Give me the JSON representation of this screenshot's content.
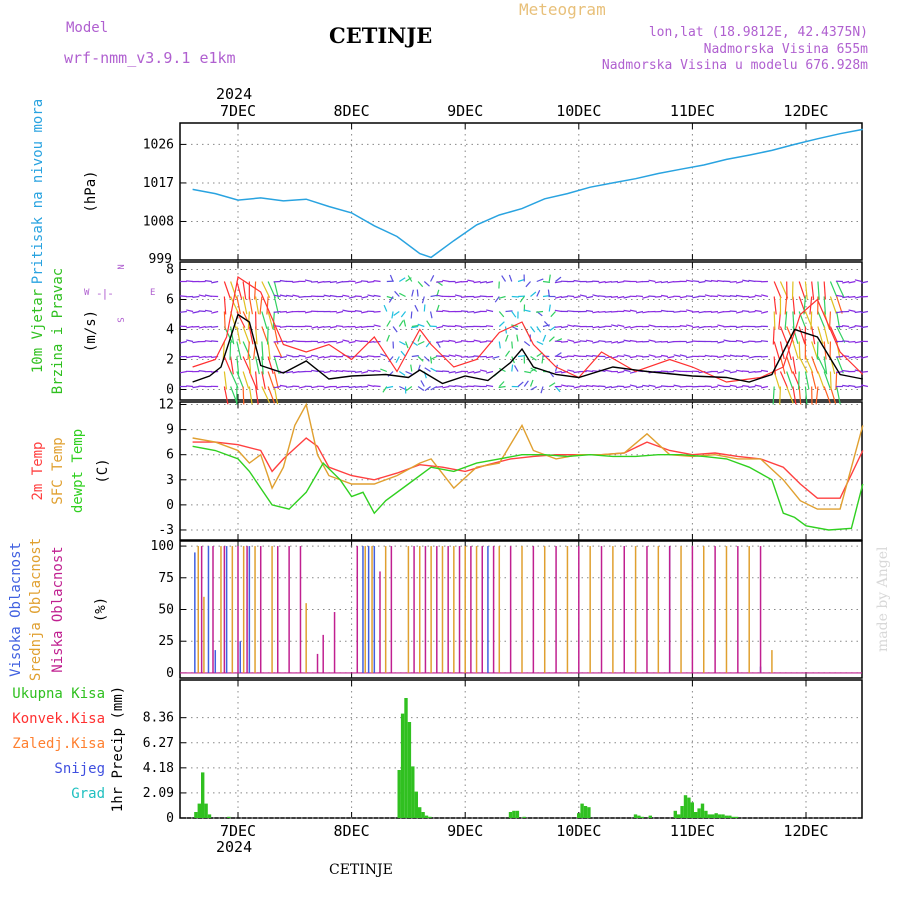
{
  "header": {
    "model_label": "Model",
    "model_name": "wrf-nmm_v3.9.1  e1km",
    "station": "CETINJE",
    "meteogram": "Meteogram",
    "lonlat": "lon,lat (18.9812E, 42.4375N)",
    "elevation": "Nadmorska Visina 655m",
    "model_elevation": "Nadmorska Visina u modelu 676.928m"
  },
  "top_axis": {
    "year": "2024",
    "dates": [
      "7DEC",
      "8DEC",
      "9DEC",
      "10DEC",
      "11DEC",
      "12DEC"
    ]
  },
  "bottom_axis": {
    "year": "2024",
    "dates": [
      "7DEC",
      "8DEC",
      "9DEC",
      "10DEC",
      "11DEC",
      "12DEC"
    ],
    "footer": "CETINJE"
  },
  "watermark": "made by Angel",
  "compass": {
    "n": "N",
    "s": "S",
    "e": "E",
    "w": "W"
  },
  "colors": {
    "pressure": "#29a3e0",
    "wind_speed": "#000000",
    "wind_gust": "#ff3030",
    "t2m": "#ff4040",
    "tsfc": "#e0a030",
    "dewpoint": "#30d020",
    "high_cloud": "#4060e0",
    "mid_cloud": "#e0a030",
    "low_cloud": "#c02090",
    "precip_total": "#30c020"
  },
  "chart_data": [
    {
      "type": "line",
      "panel": "pressure",
      "ylabel_lines": [
        "Pritisak na nivou mora",
        "(hPa)"
      ],
      "yticks": [
        1008,
        1017,
        1026
      ],
      "ylim": [
        999,
        1031
      ],
      "bottom_tick_label": "999",
      "grid": true,
      "x_unit": "days since 2024-12-06 00:00",
      "x": [
        0.6,
        0.8,
        1.0,
        1.2,
        1.4,
        1.6,
        1.8,
        2.0,
        2.2,
        2.4,
        2.6,
        2.7,
        2.9,
        3.1,
        3.3,
        3.5,
        3.7,
        3.9,
        4.1,
        4.3,
        4.5,
        4.7,
        4.9,
        5.1,
        5.3,
        5.5,
        5.7,
        5.9,
        6.1,
        6.3,
        6.5
      ],
      "values": [
        1015.5,
        1014.5,
        1013.0,
        1013.5,
        1012.8,
        1013.2,
        1011.5,
        1010.0,
        1007.0,
        1004.5,
        1000.5,
        999.6,
        1003.5,
        1007.2,
        1009.5,
        1011.0,
        1013.3,
        1014.5,
        1016.0,
        1017.0,
        1018.0,
        1019.2,
        1020.2,
        1021.2,
        1022.5,
        1023.5,
        1024.6,
        1026.0,
        1027.3,
        1028.5,
        1029.5
      ]
    },
    {
      "type": "line",
      "panel": "wind",
      "ylabel_lines": [
        "10m Vjetar",
        "Brzina i Pravac",
        "(m/s)"
      ],
      "yticks": [
        0,
        2,
        4,
        6,
        8
      ],
      "ylim": [
        -0.7,
        8.5
      ],
      "grid": true,
      "x_unit": "days since 2024-12-06 00:00",
      "series": [
        {
          "name": "wind_speed",
          "x": [
            0.6,
            0.75,
            0.85,
            1.0,
            1.1,
            1.2,
            1.4,
            1.6,
            1.8,
            2.0,
            2.3,
            2.5,
            2.6,
            2.8,
            3.0,
            3.2,
            3.4,
            3.5,
            3.6,
            3.8,
            4.0,
            4.3,
            4.6,
            5.0,
            5.3,
            5.5,
            5.7,
            5.9,
            6.1,
            6.3,
            6.5
          ],
          "values": [
            0.5,
            0.9,
            1.5,
            5.0,
            4.5,
            1.6,
            1.1,
            1.9,
            0.7,
            0.9,
            1.0,
            0.8,
            1.3,
            0.4,
            0.9,
            0.6,
            1.8,
            2.7,
            1.5,
            1.0,
            0.8,
            1.5,
            1.2,
            0.9,
            0.8,
            0.5,
            1.0,
            4.0,
            3.5,
            1.0,
            0.7
          ]
        },
        {
          "name": "wind_gust",
          "x": [
            0.6,
            0.8,
            0.9,
            1.0,
            1.2,
            1.4,
            1.6,
            1.8,
            2.0,
            2.2,
            2.4,
            2.6,
            2.7,
            2.9,
            3.1,
            3.3,
            3.5,
            3.6,
            3.8,
            4.0,
            4.2,
            4.5,
            4.8,
            5.0,
            5.3,
            5.6,
            5.8,
            5.95,
            6.1,
            6.3,
            6.5
          ],
          "values": [
            1.5,
            2.0,
            3.5,
            7.5,
            6.5,
            3.0,
            2.5,
            3.0,
            2.0,
            3.5,
            1.2,
            4.0,
            3.0,
            1.5,
            2.0,
            3.8,
            4.5,
            3.0,
            1.5,
            0.8,
            2.5,
            1.2,
            2.0,
            1.5,
            0.5,
            0.8,
            1.5,
            5.0,
            6.0,
            2.5,
            1.0
          ]
        }
      ]
    },
    {
      "type": "line",
      "panel": "temperature",
      "ylabel_lines": [
        "2m Temp",
        "SFC Temp",
        "dewpt Temp",
        "(C)"
      ],
      "yticks": [
        -3,
        0,
        3,
        6,
        9,
        12
      ],
      "ylim": [
        -4.2,
        12.3
      ],
      "grid": true,
      "x_unit": "days since 2024-12-06 00:00",
      "series": [
        {
          "name": "2m Temp",
          "x": [
            0.6,
            0.8,
            1.0,
            1.2,
            1.3,
            1.4,
            1.6,
            1.7,
            1.8,
            2.0,
            2.2,
            2.4,
            2.6,
            2.8,
            3.0,
            3.2,
            3.4,
            3.6,
            3.8,
            4.0,
            4.2,
            4.4,
            4.6,
            4.8,
            5.0,
            5.2,
            5.4,
            5.6,
            5.8,
            5.95,
            6.1,
            6.3,
            6.5
          ],
          "values": [
            7.5,
            7.5,
            7.2,
            6.5,
            4.0,
            5.5,
            8.0,
            7.0,
            4.5,
            3.5,
            3.0,
            3.8,
            4.8,
            4.5,
            4.0,
            4.8,
            5.5,
            5.8,
            6.0,
            6.0,
            6.0,
            6.2,
            7.5,
            6.5,
            6.0,
            6.2,
            5.8,
            5.5,
            4.5,
            2.5,
            0.8,
            0.8,
            6.5
          ]
        },
        {
          "name": "SFC Temp",
          "x": [
            0.6,
            0.8,
            1.0,
            1.1,
            1.2,
            1.3,
            1.4,
            1.5,
            1.6,
            1.7,
            1.8,
            2.0,
            2.2,
            2.4,
            2.6,
            2.7,
            2.9,
            3.1,
            3.3,
            3.5,
            3.6,
            3.8,
            4.0,
            4.2,
            4.4,
            4.6,
            4.8,
            5.0,
            5.2,
            5.4,
            5.6,
            5.8,
            5.95,
            6.1,
            6.3,
            6.5
          ],
          "values": [
            8.0,
            7.5,
            6.5,
            5.0,
            6.0,
            2.0,
            4.5,
            9.5,
            12.0,
            6.0,
            3.5,
            2.5,
            2.5,
            3.5,
            5.0,
            5.5,
            2.0,
            4.5,
            5.0,
            9.5,
            6.5,
            5.5,
            6.0,
            6.0,
            6.2,
            8.5,
            6.0,
            5.8,
            6.0,
            5.5,
            5.5,
            3.0,
            0.5,
            -0.5,
            -0.5,
            9.5
          ]
        },
        {
          "name": "dewpt Temp",
          "x": [
            0.6,
            0.8,
            1.0,
            1.1,
            1.2,
            1.3,
            1.45,
            1.6,
            1.75,
            1.9,
            2.0,
            2.1,
            2.2,
            2.3,
            2.5,
            2.7,
            2.9,
            3.1,
            3.3,
            3.5,
            3.7,
            3.9,
            4.1,
            4.3,
            4.5,
            4.7,
            4.9,
            5.1,
            5.3,
            5.5,
            5.7,
            5.8,
            5.9,
            6.0,
            6.2,
            6.4,
            6.5
          ],
          "values": [
            7.0,
            6.5,
            5.5,
            4.0,
            2.0,
            0.0,
            -0.5,
            1.5,
            5.0,
            3.0,
            1.0,
            1.5,
            -1.0,
            0.5,
            2.5,
            4.5,
            4.0,
            5.0,
            5.5,
            6.0,
            6.0,
            5.8,
            6.0,
            5.8,
            5.8,
            6.0,
            6.0,
            5.8,
            5.5,
            4.5,
            3.0,
            -1.0,
            -1.5,
            -2.5,
            -3.0,
            -2.8,
            2.5
          ]
        }
      ]
    },
    {
      "type": "bar",
      "panel": "clouds",
      "ylabel_lines": [
        "Visoka Oblacnost",
        "Srednja Oblacnost",
        "Niska Oblacnost",
        "(%)"
      ],
      "yticks": [
        0,
        25,
        50,
        75,
        100
      ],
      "ylim": [
        -4,
        104
      ],
      "grid": true,
      "x_unit": "days since 2024-12-06 00:00",
      "series": [
        {
          "name": "Visoka Oblacnost",
          "x": [
            0.62,
            0.74,
            0.8,
            0.9,
            1.02,
            1.1,
            2.1,
            2.15,
            2.2,
            3.2,
            4.4,
            4.8,
            5.6
          ],
          "values": [
            95,
            100,
            18,
            100,
            25,
            100,
            100,
            100,
            100,
            100,
            100,
            100,
            5
          ]
        },
        {
          "name": "Srednja Oblacnost",
          "x": [
            0.65,
            0.7,
            0.85,
            0.95,
            1.05,
            1.15,
            1.3,
            1.6,
            2.12,
            2.18,
            2.3,
            2.5,
            2.6,
            2.7,
            2.8,
            2.9,
            3.0,
            3.1,
            3.3,
            3.5,
            3.7,
            3.9,
            4.1,
            4.3,
            4.5,
            4.7,
            4.9,
            5.1,
            5.3,
            5.5,
            5.7
          ],
          "values": [
            100,
            60,
            100,
            100,
            100,
            100,
            100,
            55,
            100,
            100,
            100,
            100,
            100,
            100,
            100,
            100,
            100,
            100,
            100,
            100,
            100,
            100,
            100,
            100,
            100,
            100,
            100,
            100,
            100,
            100,
            18
          ]
        },
        {
          "name": "Niska Oblacnost",
          "x": [
            0.68,
            0.78,
            0.88,
            1.0,
            1.08,
            1.2,
            1.35,
            1.45,
            1.55,
            1.7,
            1.75,
            1.85,
            2.05,
            2.25,
            2.35,
            2.55,
            2.65,
            2.75,
            2.85,
            2.95,
            3.05,
            3.15,
            3.25,
            3.4,
            3.6,
            3.8,
            4.0,
            4.2,
            4.4,
            4.6,
            4.8,
            5.0,
            5.2,
            5.4,
            5.6,
            6.55
          ],
          "values": [
            100,
            100,
            100,
            100,
            100,
            100,
            100,
            100,
            100,
            15,
            30,
            48,
            100,
            80,
            100,
            100,
            100,
            100,
            100,
            100,
            100,
            100,
            100,
            100,
            100,
            100,
            100,
            100,
            100,
            100,
            100,
            100,
            100,
            100,
            100,
            0
          ]
        }
      ]
    },
    {
      "type": "bar",
      "panel": "precipitation",
      "ylabel_lines": [
        "1hr Precip (mm)"
      ],
      "legend": [
        "Ukupna Kisa",
        "Konvek.Kisa",
        "Zaledj.Kisa",
        "Snijeg",
        "Grad"
      ],
      "legend_colors": [
        "#30c020",
        "#ff3030",
        "#ff8030",
        "#4050e0",
        "#20c0c0"
      ],
      "yticks": [
        0,
        2.09,
        4.18,
        6.27,
        8.36
      ],
      "ylim": [
        0,
        11.5
      ],
      "grid": true,
      "x_unit": "days since 2024-12-06 00:00",
      "x": [
        0.63,
        0.66,
        0.69,
        0.72,
        0.75,
        0.92,
        2.42,
        2.45,
        2.48,
        2.51,
        2.54,
        2.57,
        2.6,
        2.63,
        2.66,
        2.69,
        3.4,
        3.43,
        3.46,
        3.52,
        4.0,
        4.03,
        4.06,
        4.09,
        4.5,
        4.53,
        4.56,
        4.63,
        4.85,
        4.88,
        4.91,
        4.94,
        4.97,
        5.0,
        5.03,
        5.06,
        5.09,
        5.12,
        5.15,
        5.18,
        5.21,
        5.24,
        5.27,
        5.3,
        5.33,
        5.36,
        5.39
      ],
      "values": [
        0.5,
        1.2,
        3.8,
        1.2,
        0.3,
        0.1,
        4.0,
        8.7,
        10.0,
        8.0,
        4.3,
        2.2,
        0.9,
        0.5,
        0.2,
        0.1,
        0.5,
        0.6,
        0.6,
        0.1,
        0.4,
        1.2,
        1.0,
        0.9,
        0.3,
        0.2,
        0.1,
        0.2,
        0.6,
        0.3,
        1.0,
        1.9,
        1.7,
        1.3,
        0.5,
        0.8,
        1.2,
        0.6,
        0.3,
        0.3,
        0.4,
        0.3,
        0.3,
        0.2,
        0.2,
        0.1,
        0.1
      ]
    }
  ]
}
